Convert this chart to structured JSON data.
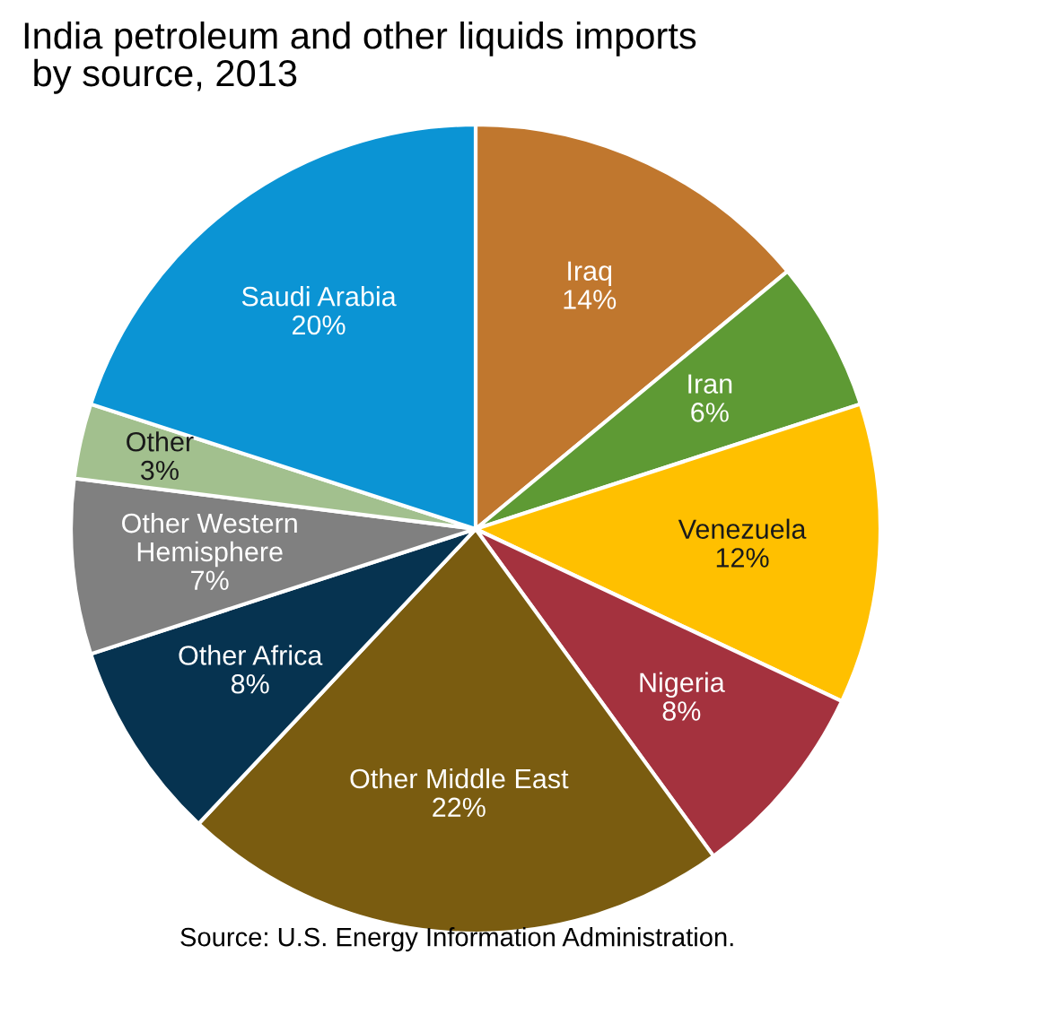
{
  "chart_data": {
    "type": "pie",
    "title": "India petroleum and other liquids imports\n by source, 2013",
    "categories": [
      "Iraq",
      "Iran",
      "Venezuela",
      "Nigeria",
      "Other Middle East",
      "Other Africa",
      "Other Western\nHemisphere",
      "Other",
      "Saudi Arabia"
    ],
    "values": [
      14,
      6,
      12,
      8,
      22,
      8,
      7,
      3,
      20
    ],
    "value_labels": [
      "14%",
      "6%",
      "12%",
      "8%",
      "22%",
      "8%",
      "7%",
      "3%",
      "20%"
    ],
    "colors": [
      "#c0772e",
      "#5e9a34",
      "#ffc000",
      "#a4323e",
      "#7a5c10",
      "#063350",
      "#808080",
      "#a2c08e",
      "#0b94d4"
    ],
    "annotations": [
      "Source: U.S. Energy Information Administration."
    ]
  }
}
